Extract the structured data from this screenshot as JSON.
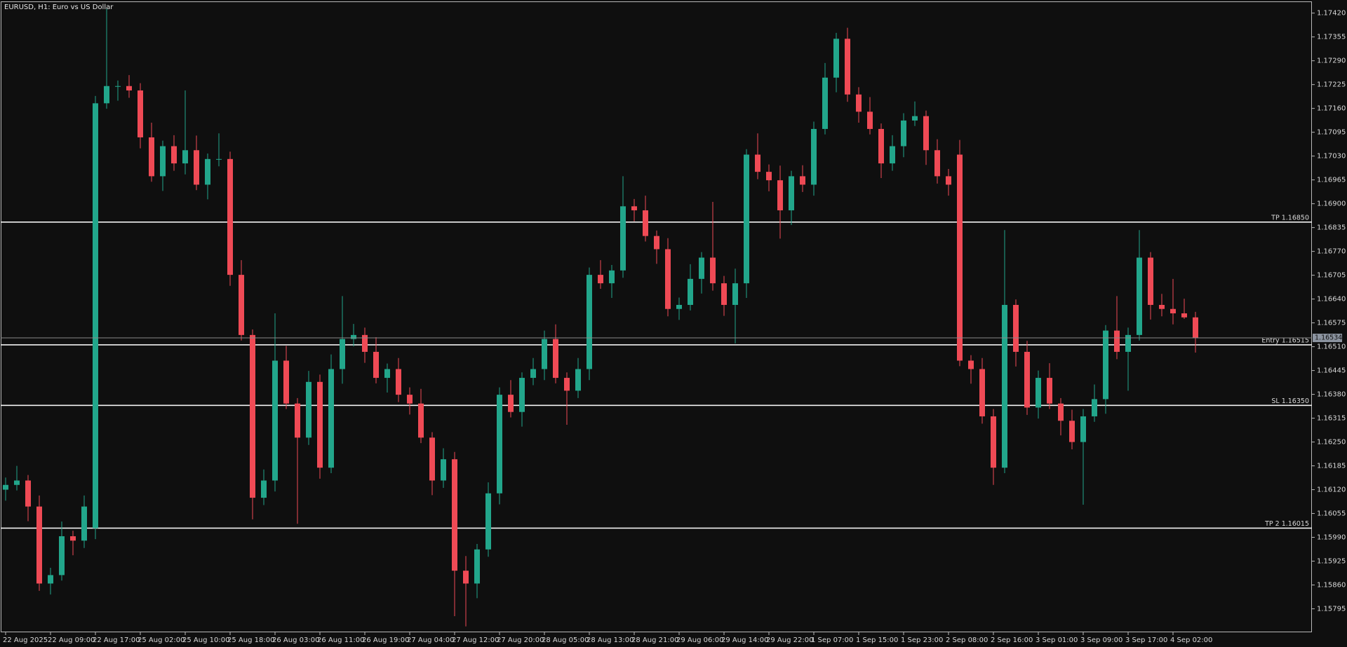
{
  "chart_data": {
    "type": "candlestick",
    "title": "EURUSD, H1:  Euro vs US Dollar",
    "up_color": "#22a68b",
    "down_color": "#ef4a55",
    "categories": [
      "22 Aug 2025",
      null,
      null,
      null,
      "22 Aug 09:00",
      null,
      null,
      null,
      "22 Aug 17:00",
      null,
      null,
      null,
      "25 Aug 02:00",
      null,
      null,
      null,
      "25 Aug 10:00",
      null,
      null,
      null,
      "25 Aug 18:00",
      null,
      null,
      null,
      "26 Aug 03:00",
      null,
      null,
      null,
      "26 Aug 11:00",
      null,
      null,
      null,
      "26 Aug 19:00",
      null,
      null,
      null,
      "27 Aug 04:00",
      null,
      null,
      null,
      "27 Aug 12:00",
      null,
      null,
      null,
      "27 Aug 20:00",
      null,
      null,
      null,
      "28 Aug 05:00",
      null,
      null,
      null,
      "28 Aug 13:00",
      null,
      null,
      null,
      "28 Aug 21:00",
      null,
      null,
      null,
      "29 Aug 06:00",
      null,
      null,
      null,
      "29 Aug 14:00",
      null,
      null,
      null,
      "29 Aug 22:00",
      null,
      null,
      null,
      "1 Sep 07:00",
      null,
      null,
      null,
      "1 Sep 15:00",
      null,
      null,
      null,
      "1 Sep 23:00",
      null,
      null,
      null,
      "2 Sep 08:00",
      null,
      null,
      null,
      "2 Sep 16:00",
      null,
      null,
      null,
      "3 Sep 01:00",
      null,
      null,
      null,
      "3 Sep 09:00",
      null,
      null,
      null,
      "3 Sep 17:00",
      null,
      null,
      null,
      "4 Sep 02:00",
      null,
      null
    ],
    "open": [
      1.1612,
      1.16133,
      1.16145,
      1.16074,
      1.15864,
      1.15887,
      1.15993,
      1.15981,
      1.16015,
      1.17174,
      1.17221,
      1.17221,
      1.17209,
      1.17081,
      1.16975,
      1.17057,
      1.1701,
      1.17046,
      1.16952,
      1.17022,
      1.17022,
      1.16706,
      1.16542,
      1.16098,
      1.16145,
      1.16472,
      1.16355,
      1.16262,
      1.16414,
      1.1618,
      1.16449,
      1.16531,
      1.16542,
      1.16496,
      1.16425,
      1.16449,
      1.16379,
      1.16355,
      1.16262,
      1.16145,
      1.16203,
      1.15899,
      1.15864,
      1.15957,
      1.1611,
      1.16379,
      1.16332,
      1.16425,
      1.16449,
      1.16531,
      1.16425,
      1.1639,
      1.16449,
      1.16706,
      1.16683,
      1.16718,
      1.16893,
      1.16882,
      1.16812,
      1.16776,
      1.16613,
      1.16624,
      1.16695,
      1.16753,
      1.16683,
      1.16624,
      1.16683,
      1.17034,
      1.16987,
      1.16964,
      1.16882,
      1.16975,
      1.16952,
      1.17104,
      1.17244,
      1.1735,
      1.17198,
      1.17151,
      1.17104,
      1.1701,
      1.17057,
      1.17127,
      1.17139,
      1.17046,
      1.16975,
      1.17034,
      1.16472,
      1.16449,
      1.1632,
      1.1618,
      1.16624,
      1.16496,
      1.16344,
      1.16425,
      1.16355,
      1.16308,
      1.1625,
      1.1632,
      1.16367,
      1.16554,
      1.16496,
      1.16542,
      1.16753,
      1.16624,
      1.16613,
      1.16601,
      1.1659
    ],
    "high": [
      1.16153,
      1.16185,
      1.1616,
      1.16104,
      1.15907,
      1.16033,
      1.16008,
      1.16104,
      1.17194,
      1.17432,
      1.17236,
      1.17251,
      1.17229,
      1.17121,
      1.17072,
      1.17087,
      1.17209,
      1.17086,
      1.17037,
      1.17092,
      1.17042,
      1.16746,
      1.16557,
      1.16175,
      1.16601,
      1.16512,
      1.1637,
      1.16444,
      1.16434,
      1.16489,
      1.16648,
      1.16572,
      1.16562,
      1.16536,
      1.16464,
      1.16479,
      1.16399,
      1.16395,
      1.16277,
      1.16233,
      1.16223,
      1.15939,
      1.15972,
      1.1614,
      1.16399,
      1.16419,
      1.1644,
      1.16479,
      1.16554,
      1.16571,
      1.1644,
      1.16479,
      1.16726,
      1.16746,
      1.16733,
      1.16975,
      1.16913,
      1.16922,
      1.16827,
      1.16806,
      1.16644,
      1.16735,
      1.16768,
      1.16905,
      1.16703,
      1.16723,
      1.17049,
      1.17092,
      1.17007,
      1.17004,
      1.1699,
      1.17005,
      1.17124,
      1.17284,
      1.17366,
      1.1738,
      1.17218,
      1.17191,
      1.17119,
      1.17087,
      1.17147,
      1.17179,
      1.17154,
      1.17076,
      1.16995,
      1.17074,
      1.16487,
      1.16479,
      1.1634,
      1.16828,
      1.16639,
      1.16526,
      1.16445,
      1.16465,
      1.1637,
      1.16338,
      1.1634,
      1.16407,
      1.16569,
      1.16648,
      1.16562,
      1.16828,
      1.16768,
      1.16654,
      1.16695,
      1.16641,
      1.16605
    ],
    "low": [
      1.1609,
      1.16118,
      1.16034,
      1.15844,
      1.15834,
      1.15872,
      1.15941,
      1.15961,
      1.15985,
      1.17159,
      1.17181,
      1.17189,
      1.17051,
      1.1696,
      1.16935,
      1.1699,
      1.1698,
      1.16937,
      1.16912,
      1.17002,
      1.16676,
      1.16527,
      1.16039,
      1.16078,
      1.16115,
      1.1634,
      1.16027,
      1.16242,
      1.1615,
      1.16165,
      1.16409,
      1.16511,
      1.16466,
      1.1641,
      1.16385,
      1.16359,
      1.16325,
      1.16247,
      1.16105,
      1.16125,
      1.15775,
      1.15747,
      1.15824,
      1.15937,
      1.1608,
      1.16317,
      1.16292,
      1.16405,
      1.16419,
      1.1641,
      1.16297,
      1.1637,
      1.16419,
      1.16668,
      1.16643,
      1.16698,
      1.16852,
      1.16797,
      1.16736,
      1.16593,
      1.16583,
      1.16609,
      1.16655,
      1.16663,
      1.16594,
      1.16519,
      1.16643,
      1.16967,
      1.16934,
      1.16805,
      1.16842,
      1.16932,
      1.16922,
      1.17089,
      1.17204,
      1.17178,
      1.17121,
      1.17089,
      1.1697,
      1.1699,
      1.17027,
      1.17112,
      1.17006,
      1.16955,
      1.16922,
      1.16457,
      1.16409,
      1.163,
      1.16133,
      1.16165,
      1.16456,
      1.16324,
      1.16314,
      1.1634,
      1.16268,
      1.1623,
      1.16079,
      1.16305,
      1.16327,
      1.16476,
      1.1639,
      1.16527,
      1.16584,
      1.16593,
      1.16571,
      1.16586,
      1.16494
    ],
    "close": [
      1.16133,
      1.16145,
      1.16074,
      1.15864,
      1.15887,
      1.15993,
      1.15981,
      1.16074,
      1.17174,
      1.17221,
      1.17221,
      1.17209,
      1.17081,
      1.16975,
      1.17057,
      1.1701,
      1.17046,
      1.16952,
      1.17022,
      1.17022,
      1.16706,
      1.16542,
      1.16098,
      1.16145,
      1.16472,
      1.16355,
      1.16262,
      1.16414,
      1.1618,
      1.16449,
      1.16531,
      1.16542,
      1.16496,
      1.16425,
      1.16449,
      1.16379,
      1.16355,
      1.16262,
      1.16145,
      1.16203,
      1.15899,
      1.15864,
      1.15957,
      1.1611,
      1.16379,
      1.16332,
      1.16425,
      1.16449,
      1.16531,
      1.16425,
      1.1639,
      1.16449,
      1.16706,
      1.16683,
      1.16718,
      1.16893,
      1.16882,
      1.16812,
      1.16776,
      1.16613,
      1.16624,
      1.16695,
      1.16753,
      1.16683,
      1.16624,
      1.16683,
      1.17034,
      1.16987,
      1.16964,
      1.16882,
      1.16975,
      1.16952,
      1.17104,
      1.17244,
      1.1735,
      1.17198,
      1.17151,
      1.17104,
      1.1701,
      1.17057,
      1.17127,
      1.17139,
      1.17046,
      1.16975,
      1.16952,
      1.16472,
      1.16449,
      1.1632,
      1.1618,
      1.16624,
      1.16496,
      1.16344,
      1.16425,
      1.16355,
      1.16308,
      1.1625,
      1.1632,
      1.16367,
      1.16554,
      1.16496,
      1.16542,
      1.16753,
      1.16624,
      1.16613,
      1.16601,
      1.1659,
      1.16534
    ],
    "ylim": [
      1.15731,
      1.1745
    ],
    "yticks": [
      {
        "value": 1.1742,
        "label": "1.17420"
      },
      1.17355,
      {
        "value": 1.1729,
        "label": "1.17290"
      },
      1.17225,
      {
        "value": 1.1716,
        "label": "1.17160"
      },
      1.17095,
      {
        "value": 1.1703,
        "label": "1.17030"
      },
      1.16965,
      {
        "value": 1.169,
        "label": "1.16900"
      },
      1.16835,
      {
        "value": 1.1677,
        "label": "1.16770"
      },
      1.16705,
      {
        "value": 1.1664,
        "label": "1.16640"
      },
      1.16575,
      {
        "value": 1.1651,
        "label": "1.16510"
      },
      1.16445,
      {
        "value": 1.1638,
        "label": "1.16380"
      },
      1.16315,
      {
        "value": 1.1625,
        "label": "1.16250"
      },
      1.16185,
      {
        "value": 1.1612,
        "label": "1.16120"
      },
      1.16055,
      {
        "value": 1.1599,
        "label": "1.15990"
      },
      1.15925,
      {
        "value": 1.1586,
        "label": "1.15860"
      },
      1.15795
    ],
    "levels": [
      {
        "label": "TP 1.16850",
        "value": 1.1685
      },
      {
        "label": "Entry 1.16515",
        "value": 1.16515
      },
      {
        "label": "SL 1.16350",
        "value": 1.1635
      },
      {
        "label": "TP 2 1.16015",
        "value": 1.16015
      }
    ],
    "current_price": 1.16534
  }
}
